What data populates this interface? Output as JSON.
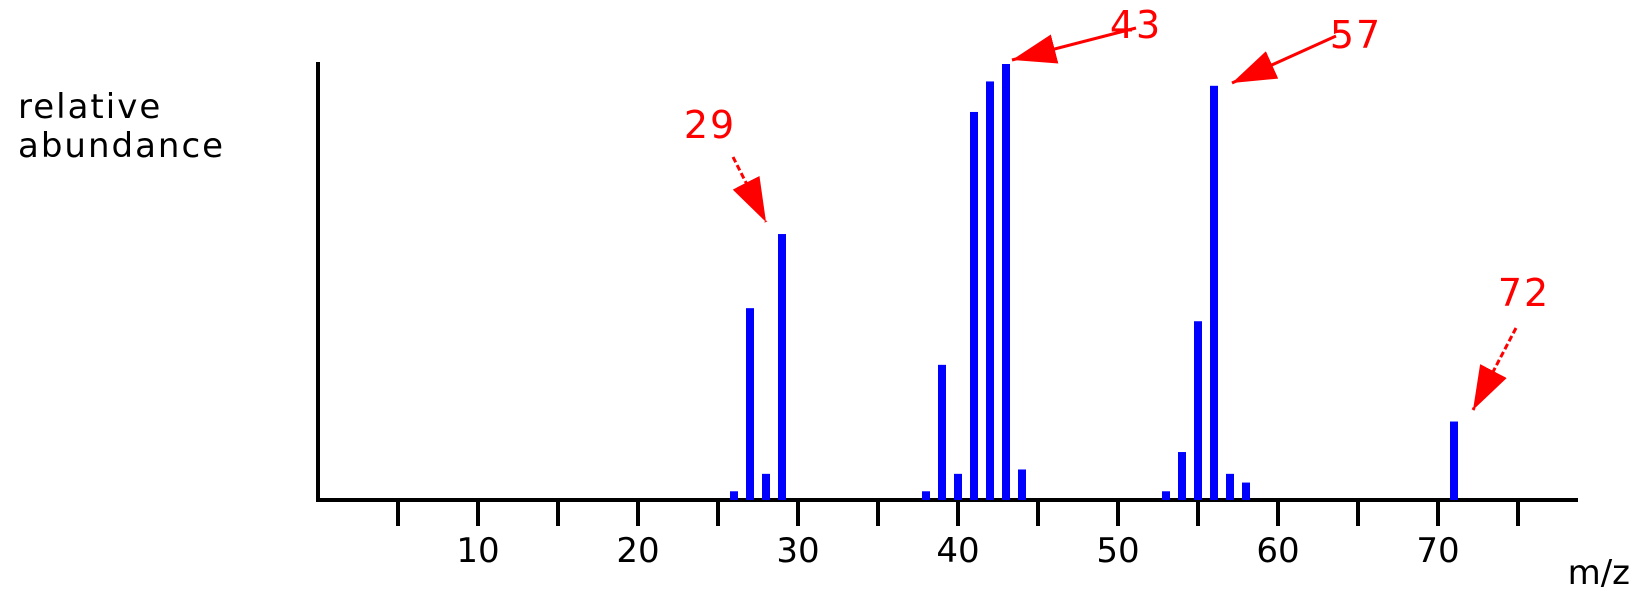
{
  "chart_data": {
    "type": "bar",
    "ylabel_lines": [
      "relative",
      "abundance"
    ],
    "xlabel": "m/z",
    "x_ticks_labeled": [
      10,
      20,
      30,
      40,
      50,
      60,
      70
    ],
    "x_ticks_minor": [
      5,
      15,
      25,
      35,
      45,
      55,
      65,
      75
    ],
    "xlim": [
      0,
      79
    ],
    "ylim": [
      0,
      100
    ],
    "bar_color": "#0000ff",
    "annotation_color": "#ff0000",
    "x": [
      26,
      27,
      28,
      29,
      38,
      39,
      40,
      41,
      42,
      43,
      44,
      53,
      54,
      55,
      56,
      57,
      58,
      71,
      72
    ],
    "values": [
      2,
      44,
      6,
      61,
      2,
      31,
      6,
      89,
      96,
      100,
      7,
      2,
      11,
      41,
      95,
      6,
      4,
      18,
      0
    ],
    "annotations": [
      {
        "label": "29",
        "x": 29
      },
      {
        "label": "43",
        "x": 43
      },
      {
        "label": "57",
        "x": 57
      },
      {
        "label": "72",
        "x": 72
      }
    ]
  }
}
